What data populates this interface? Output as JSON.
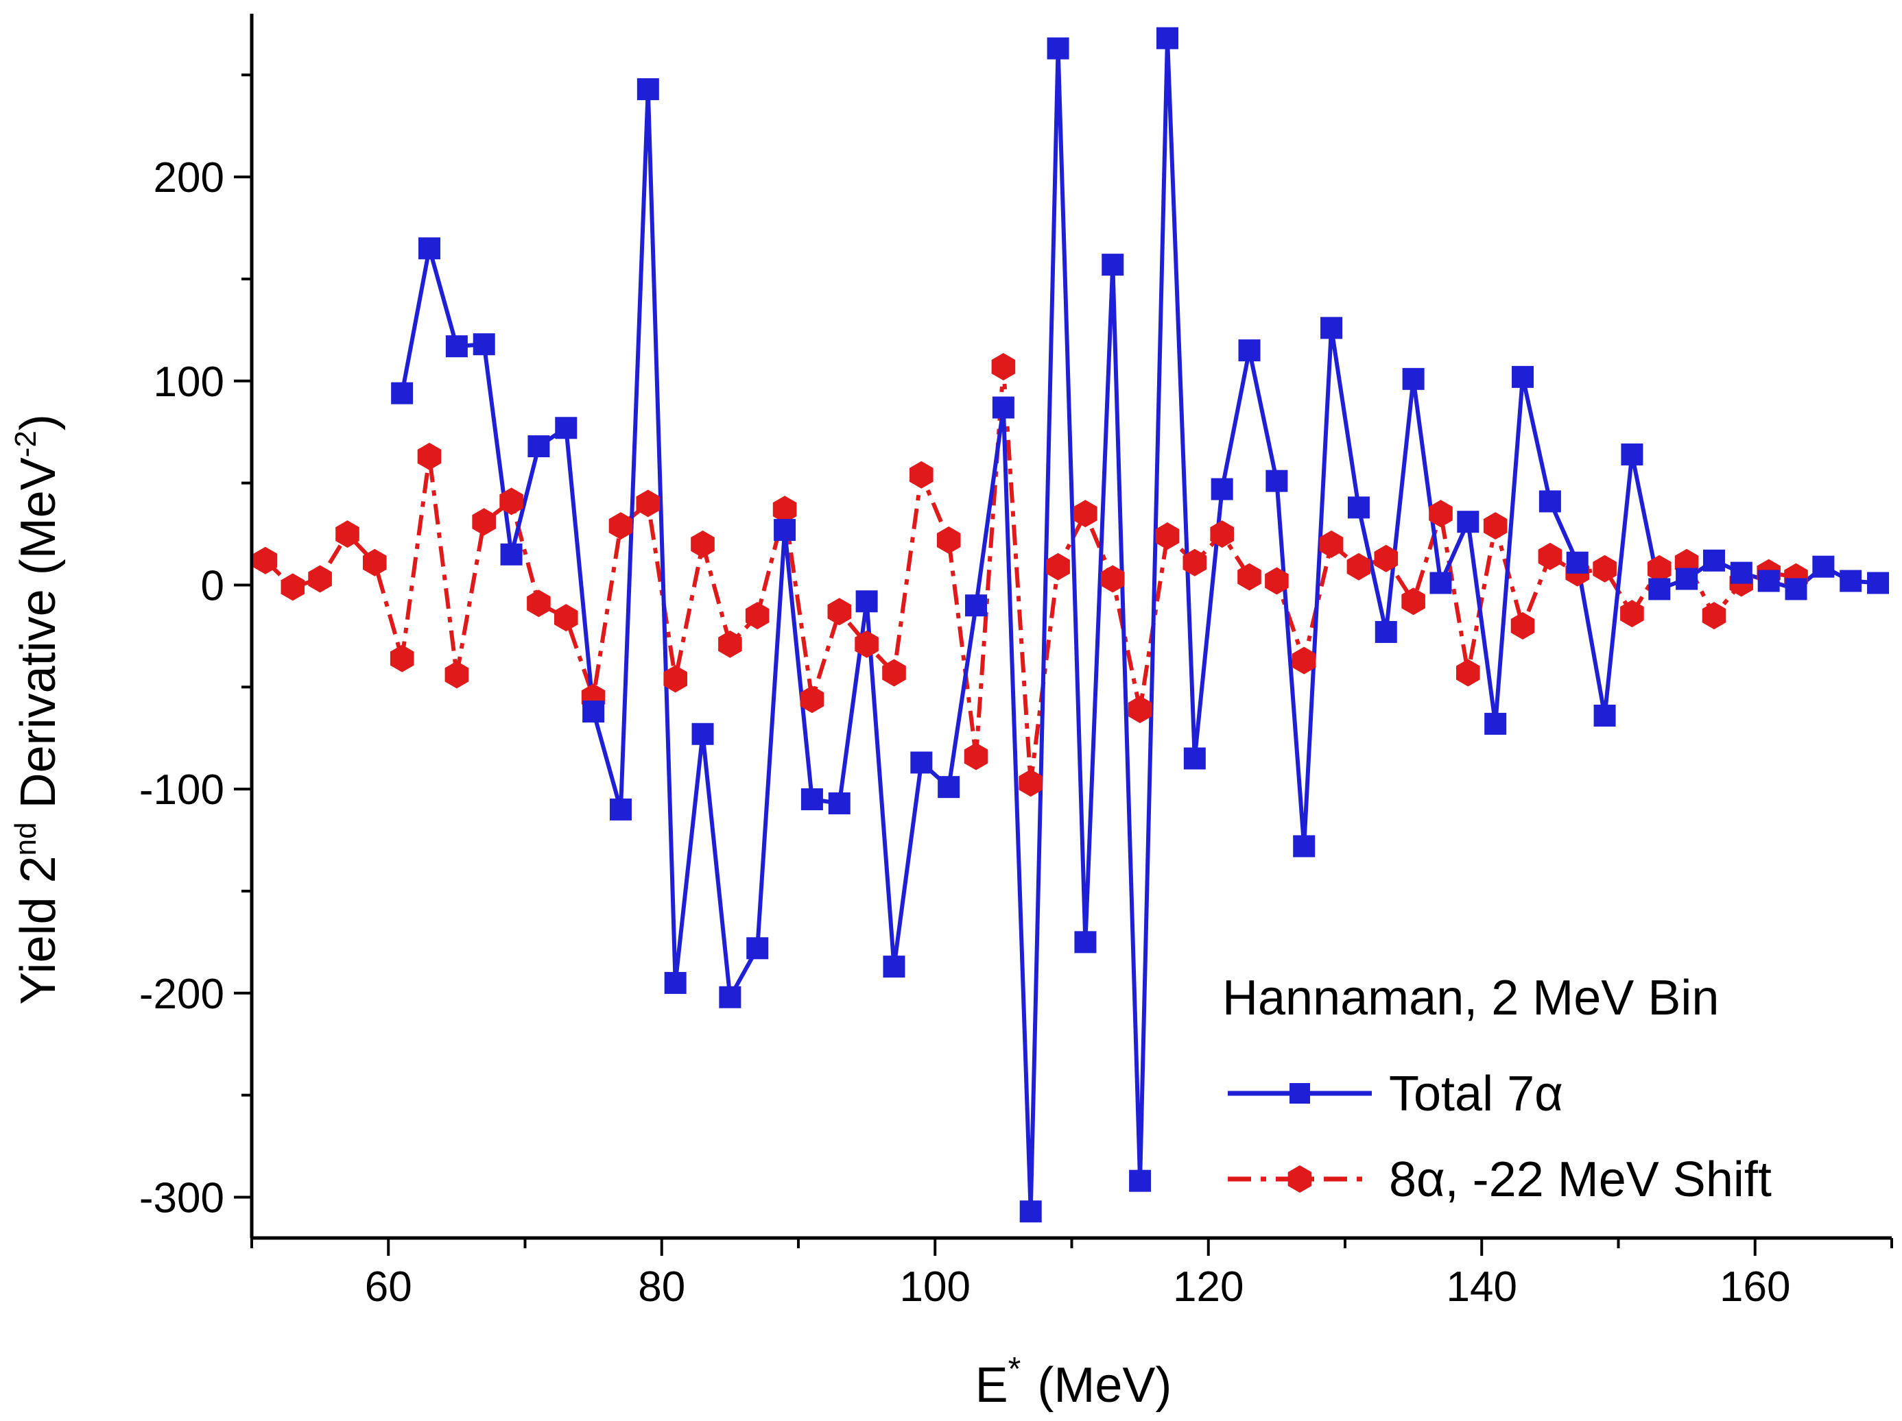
{
  "chart_data": {
    "type": "line",
    "title": "",
    "xlabel": {
      "main": "E",
      "sup": "*",
      "unit": "(MeV)"
    },
    "ylabel": {
      "pre": "Yield 2",
      "sup1": "nd",
      "mid": " Derivative (MeV",
      "sup2": "-2",
      "post": ")"
    },
    "xlim": [
      50,
      170
    ],
    "ylim": [
      -320,
      280
    ],
    "xticks": [
      60,
      80,
      100,
      120,
      140,
      160
    ],
    "yticks": [
      -300,
      -200,
      -100,
      0,
      100,
      200
    ],
    "xtick_labels": [
      "60",
      "80",
      "100",
      "120",
      "140",
      "160"
    ],
    "ytick_labels": [
      "-300",
      "-200",
      "-100",
      "0",
      "100",
      "200"
    ],
    "grid": false,
    "legend": {
      "position": "bottom-right",
      "title": "Hannaman, 2 MeV Bin",
      "entries": [
        "Total 7α",
        "8α, -22 MeV Shift"
      ]
    },
    "series": [
      {
        "name": "Total 7α",
        "color": "#1f1fd6",
        "marker": "square",
        "line": "solid",
        "x": [
          61,
          63,
          65,
          67,
          69,
          71,
          73,
          75,
          77,
          79,
          81,
          83,
          85,
          87,
          89,
          91,
          93,
          95,
          97,
          99,
          101,
          103,
          105,
          107,
          109,
          111,
          113,
          115,
          117,
          119,
          121,
          123,
          125,
          127,
          129,
          131,
          133,
          135,
          137,
          139,
          141,
          143,
          145,
          147,
          149,
          151,
          153,
          155,
          157,
          159,
          161,
          163,
          165,
          167,
          169
        ],
        "y": [
          94,
          165,
          117,
          118,
          15,
          68,
          77,
          -62,
          -110,
          243,
          -195,
          -73,
          -202,
          -178,
          27,
          -105,
          -107,
          -8,
          -187,
          -87,
          -99,
          -10,
          87,
          -307,
          263,
          -175,
          157,
          -292,
          268,
          -85,
          47,
          115,
          51,
          -128,
          126,
          38,
          -23,
          101,
          1,
          31,
          -68,
          102,
          41,
          11,
          -64,
          64,
          -2,
          3,
          12,
          6,
          2,
          -2,
          9,
          2,
          1
        ]
      },
      {
        "name": "8α, -22 MeV Shift",
        "color": "#e01a1a",
        "marker": "hexagon",
        "line": "dash-dot",
        "x": [
          51,
          53,
          55,
          57,
          59,
          61,
          63,
          65,
          67,
          69,
          71,
          73,
          75,
          77,
          79,
          81,
          83,
          85,
          87,
          89,
          91,
          93,
          95,
          97,
          99,
          101,
          103,
          105,
          107,
          109,
          111,
          113,
          115,
          117,
          119,
          121,
          123,
          125,
          127,
          129,
          131,
          133,
          135,
          137,
          139,
          141,
          143,
          145,
          147,
          149,
          151,
          153,
          155,
          157,
          159,
          161,
          163
        ],
        "y": [
          12,
          -1,
          3,
          25,
          11,
          -36,
          63,
          -44,
          31,
          41,
          -9,
          -16,
          -55,
          29,
          40,
          -46,
          20,
          -29,
          -15,
          37,
          -56,
          -13,
          -29,
          -43,
          54,
          22,
          -84,
          107,
          -97,
          9,
          35,
          3,
          -61,
          24,
          11,
          25,
          4,
          2,
          -37,
          20,
          9,
          13,
          -8,
          35,
          -43,
          29,
          -20,
          14,
          6,
          8,
          -14,
          8,
          11,
          -15,
          1,
          6,
          4
        ]
      }
    ]
  }
}
